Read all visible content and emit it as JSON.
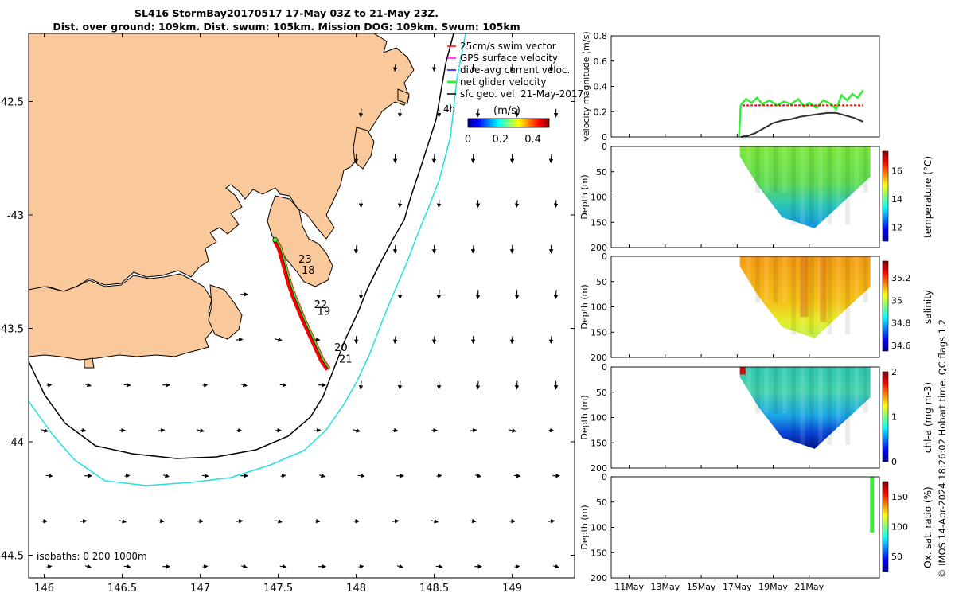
{
  "title": {
    "line1": "SL416 StormBay20170517 17-May 03Z to 21-May 23Z.",
    "line2": "Dist. over ground: 109km. Dist. swum: 105km. Mission DOG: 109km. Swum: 105km"
  },
  "footer_vertical": "© IMOS 14-Apr-2024 18:26:02 Hobart time. QC flags 1  2",
  "colors": {
    "land": "#f9c89b",
    "isobath_200": "#000000",
    "isobath_1000": "#22e0e0",
    "track": "#ff0000",
    "net_velocity": "#33ee33",
    "geo_vector": "#000000"
  },
  "chart_data": [
    {
      "type": "map",
      "x_ticks": [
        "146",
        "146.5",
        "147",
        "147.5",
        "148",
        "148.5",
        "149"
      ],
      "y_ticks": [
        "-42.5",
        "-43",
        "-43.5",
        "-44",
        "-44.5"
      ],
      "xlim": [
        145.9,
        149.4
      ],
      "ylim": [
        -44.6,
        -42.2
      ],
      "legend": {
        "placement": "top-right",
        "entries": [
          {
            "label": "25cm/s swim vector",
            "color": "#ff0000"
          },
          {
            "label": "GPS surface velocity",
            "color": "#ff00ff"
          },
          {
            "label": "dive-avg current veloc.",
            "color": "#0000ff"
          },
          {
            "label": "net glider velocity",
            "color": "#33ee33"
          },
          {
            "label": "sfc geo. vel. 21-May-2017",
            "color": "#000000"
          }
        ]
      },
      "time_label": "4h",
      "colorbar": {
        "title": "(m/s)",
        "ticks": [
          "0",
          "0.2",
          "0.4"
        ],
        "range": [
          0,
          0.5
        ]
      },
      "isobath_note": "isobaths: 0   200  1000m",
      "day_labels": [
        {
          "text": "23",
          "lon": 147.63,
          "lat": -43.21
        },
        {
          "text": "18",
          "lon": 147.65,
          "lat": -43.26
        },
        {
          "text": "22",
          "lon": 147.73,
          "lat": -43.41
        },
        {
          "text": "19",
          "lon": 147.75,
          "lat": -43.44
        },
        {
          "text": "20",
          "lon": 147.86,
          "lat": -43.6
        },
        {
          "text": "21",
          "lon": 147.89,
          "lat": -43.65
        }
      ],
      "track": [
        [
          147.48,
          -43.11
        ],
        [
          147.51,
          -43.15
        ],
        [
          147.53,
          -43.2
        ],
        [
          147.55,
          -43.25
        ],
        [
          147.57,
          -43.3
        ],
        [
          147.6,
          -43.36
        ],
        [
          147.63,
          -43.41
        ],
        [
          147.66,
          -43.46
        ],
        [
          147.7,
          -43.52
        ],
        [
          147.74,
          -43.58
        ],
        [
          147.78,
          -43.64
        ],
        [
          147.82,
          -43.68
        ]
      ]
    },
    {
      "type": "line",
      "ylabel": "velocity magnitude (m/s)",
      "ylim": [
        0,
        0.8
      ],
      "y_ticks": [
        "0",
        "0.2",
        "0.4",
        "0.6",
        "0.8"
      ],
      "x_ticks": [
        "11May",
        "13May",
        "15May",
        "17May",
        "19May",
        "21May"
      ],
      "xlim": [
        10,
        24.9
      ],
      "series": [
        {
          "color": "#33ee33",
          "x": [
            17.1,
            17.2,
            17.3,
            17.5,
            17.8,
            18.1,
            18.4,
            18.8,
            19.2,
            19.6,
            20.0,
            20.4,
            20.7,
            21.0,
            21.4,
            21.8,
            22.2,
            22.5,
            22.8,
            23.1,
            23.4,
            23.7,
            24.0
          ],
          "values": [
            0.0,
            0.25,
            0.27,
            0.3,
            0.27,
            0.31,
            0.26,
            0.29,
            0.25,
            0.28,
            0.26,
            0.3,
            0.24,
            0.27,
            0.23,
            0.29,
            0.26,
            0.22,
            0.33,
            0.29,
            0.34,
            0.31,
            0.37
          ]
        },
        {
          "color": "#ff0000",
          "x": [
            17.3,
            24.0
          ],
          "values": [
            0.25,
            0.25
          ]
        },
        {
          "color": "#333333",
          "x": [
            17.2,
            17.6,
            18.0,
            18.5,
            19.0,
            19.5,
            20.0,
            20.5,
            21.0,
            21.5,
            22.0,
            22.5,
            23.0,
            23.5,
            24.0
          ],
          "values": [
            0.0,
            0.01,
            0.03,
            0.07,
            0.11,
            0.13,
            0.14,
            0.16,
            0.17,
            0.18,
            0.19,
            0.19,
            0.17,
            0.15,
            0.12
          ]
        }
      ]
    },
    {
      "type": "heatmap",
      "ylabel": "Depth (m)",
      "y_ticks": [
        "0",
        "50",
        "100",
        "150",
        "200"
      ],
      "ylim": [
        200,
        0
      ],
      "xlim": [
        10,
        24.9
      ],
      "colorbar_label": "temperature (°C)",
      "colorbar_ticks": [
        "12",
        "14",
        "16"
      ],
      "colorbar_range": [
        11,
        17.4
      ]
    },
    {
      "type": "heatmap",
      "ylabel": "Depth (m)",
      "y_ticks": [
        "0",
        "50",
        "100",
        "150",
        "200"
      ],
      "ylim": [
        200,
        0
      ],
      "xlim": [
        10,
        24.9
      ],
      "colorbar_label": "salinity",
      "colorbar_ticks": [
        "34.6",
        "34.8",
        "35",
        "35.2"
      ],
      "colorbar_range": [
        34.55,
        35.35
      ]
    },
    {
      "type": "heatmap",
      "ylabel": "Depth (m)",
      "y_ticks": [
        "0",
        "50",
        "100",
        "150",
        "200"
      ],
      "ylim": [
        200,
        0
      ],
      "xlim": [
        10,
        24.9
      ],
      "colorbar_label": "chl-a (mg m-3)",
      "colorbar_ticks": [
        "0",
        "1",
        "2"
      ],
      "colorbar_range": [
        0,
        2
      ]
    },
    {
      "type": "heatmap",
      "ylabel": "Depth (m)",
      "y_ticks": [
        "0",
        "50",
        "100",
        "150",
        "200"
      ],
      "ylim": [
        200,
        0
      ],
      "xlim": [
        10,
        24.9
      ],
      "x_ticks": [
        "11May",
        "13May",
        "15May",
        "17May",
        "19May",
        "21May"
      ],
      "colorbar_label": "Ox. sat. ratio (%)",
      "colorbar_ticks": [
        "50",
        "100",
        "150"
      ],
      "colorbar_range": [
        25,
        175
      ]
    }
  ]
}
